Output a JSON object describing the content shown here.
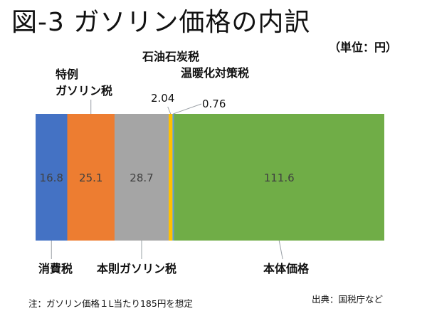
{
  "title": "図-3 ガソリン価格の内訳",
  "unit": "（単位：円）",
  "labels": {
    "petroleum_tax_l1": "石油石炭税",
    "petroleum_tax_l2": "温暖化対策税",
    "special_tax_l1": "特例",
    "special_tax_l2": "ガソリン税",
    "consumption_tax": "消費税",
    "base_gasoline_tax": "本則ガソリン税",
    "base_price": "本体価格",
    "petroleum_value": "2.04",
    "warming_value": "0.76"
  },
  "note": "注：ガソリン価格１L当たり185円を想定",
  "source": "出典：国税庁など",
  "chart_data": {
    "type": "bar",
    "orientation": "horizontal-stacked",
    "categories": [
      "ガソリン価格"
    ],
    "series": [
      {
        "name": "消費税",
        "values": [
          16.8
        ],
        "color": "#4472C4",
        "label": "16.8"
      },
      {
        "name": "特例ガソリン税",
        "values": [
          25.1
        ],
        "color": "#ED7D31",
        "label": "25.1"
      },
      {
        "name": "本則ガソリン税",
        "values": [
          28.7
        ],
        "color": "#A5A5A5",
        "label": "28.7"
      },
      {
        "name": "石油石炭税",
        "values": [
          2.04
        ],
        "color": "#FFC000",
        "label": ""
      },
      {
        "name": "温暖化対策税",
        "values": [
          0.76
        ],
        "color": "#5B9BD5",
        "label": ""
      },
      {
        "name": "本体価格",
        "values": [
          111.6
        ],
        "color": "#70AD47",
        "label": "111.6"
      }
    ],
    "total": 185,
    "grid": false
  }
}
